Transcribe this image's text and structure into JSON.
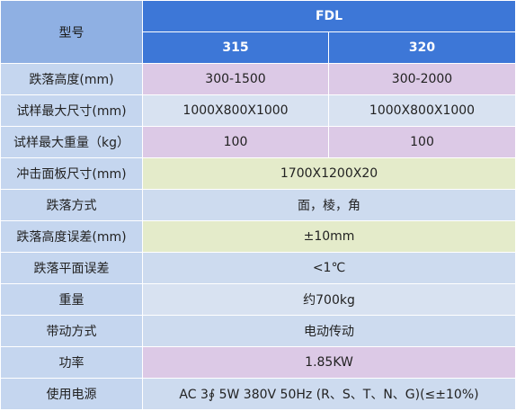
{
  "table": {
    "header": {
      "model_label": "型号",
      "series": "FDL",
      "models": [
        "315",
        "320"
      ]
    },
    "rows": [
      {
        "label": "跌落高度(mm)",
        "values": [
          "300-1500",
          "300-2000"
        ],
        "color": "#dcc9e6"
      },
      {
        "label": "试样最大尺寸(mm)",
        "values": [
          "1000X800X1000",
          "1000X800X1000"
        ],
        "color": "#d8e2f1"
      },
      {
        "label": "试样最大重量（kg）",
        "values": [
          "100",
          "100"
        ],
        "color": "#dcc9e6"
      },
      {
        "label": "冲击面板尺寸(mm)",
        "value": "1700X1200X20",
        "color": "#e4ebca"
      },
      {
        "label": "跌落方式",
        "value": "面，棱，角",
        "color": "#cddbef"
      },
      {
        "label": "跌落高度误差(mm)",
        "value": "±10mm",
        "color": "#e4ebca"
      },
      {
        "label": "跌落平面误差",
        "value": "<1℃",
        "color": "#cddbef"
      },
      {
        "label": "重量",
        "value": "约700kg",
        "color": "#d8e2f1"
      },
      {
        "label": "带动方式",
        "value": "电动传动",
        "color": "#cddbef"
      },
      {
        "label": "功率",
        "value": "1.85KW",
        "color": "#dcc9e6"
      },
      {
        "label": "使用电源",
        "value": "AC 3∮ 5W 380V 50Hz (R、S、T、N、G)(≤±10%)",
        "color": "#cddbef"
      }
    ],
    "colors": {
      "header_top": "#3d77d7",
      "header_corner": "#8fb0e3",
      "label_column": "#c5d6ef"
    }
  }
}
